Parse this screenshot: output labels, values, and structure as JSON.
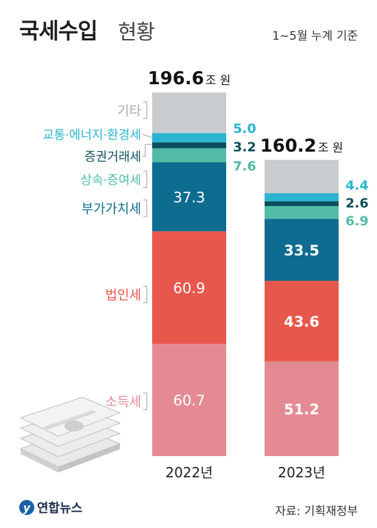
{
  "header": {
    "title_main": "국세수입",
    "title_sub": "현황",
    "basis": "1~5월 누계 기준"
  },
  "footer": {
    "logo": "연합뉴스",
    "source": "자료: 기획재정부"
  },
  "colors": {
    "소득세": "#e48a93",
    "법인세": "#e8574b",
    "부가가치세": "#0f6c91",
    "상속·증여세": "#52bba7",
    "증권거래세": "#0c4f5c",
    "교통·에너지·환경세": "#2ab4cf",
    "기타": "#c9ccce",
    "bar_label": "#ffffff"
  },
  "chart_data": {
    "type": "bar",
    "stacked": true,
    "categories": [
      "2022년",
      "2023년"
    ],
    "totals": [
      196.6,
      160.2
    ],
    "total_labels": [
      {
        "value": "196.6",
        "unit": "조 원"
      },
      {
        "value": "160.2",
        "unit": "조 원"
      }
    ],
    "series": [
      {
        "name": "소득세",
        "values": [
          60.7,
          51.2
        ]
      },
      {
        "name": "법인세",
        "values": [
          60.9,
          43.6
        ]
      },
      {
        "name": "부가가치세",
        "values": [
          37.3,
          33.5
        ]
      },
      {
        "name": "상속·증여세",
        "values": [
          7.6,
          6.9
        ]
      },
      {
        "name": "증권거래세",
        "values": [
          3.2,
          2.6
        ]
      },
      {
        "name": "교통·에너지·환경세",
        "values": [
          5.0,
          4.4
        ]
      },
      {
        "name": "기타",
        "values": [
          null,
          null
        ]
      }
    ],
    "value_labels": [
      [
        "60.7",
        "60.9",
        "37.3",
        "7.6",
        "3.2",
        "5.0",
        ""
      ],
      [
        "51.2",
        "43.6",
        "33.5",
        "6.9",
        "2.6",
        "4.4",
        ""
      ]
    ],
    "xlabel": "",
    "ylabel": "",
    "ylim": [
      0,
      196.6
    ],
    "grid": false
  }
}
